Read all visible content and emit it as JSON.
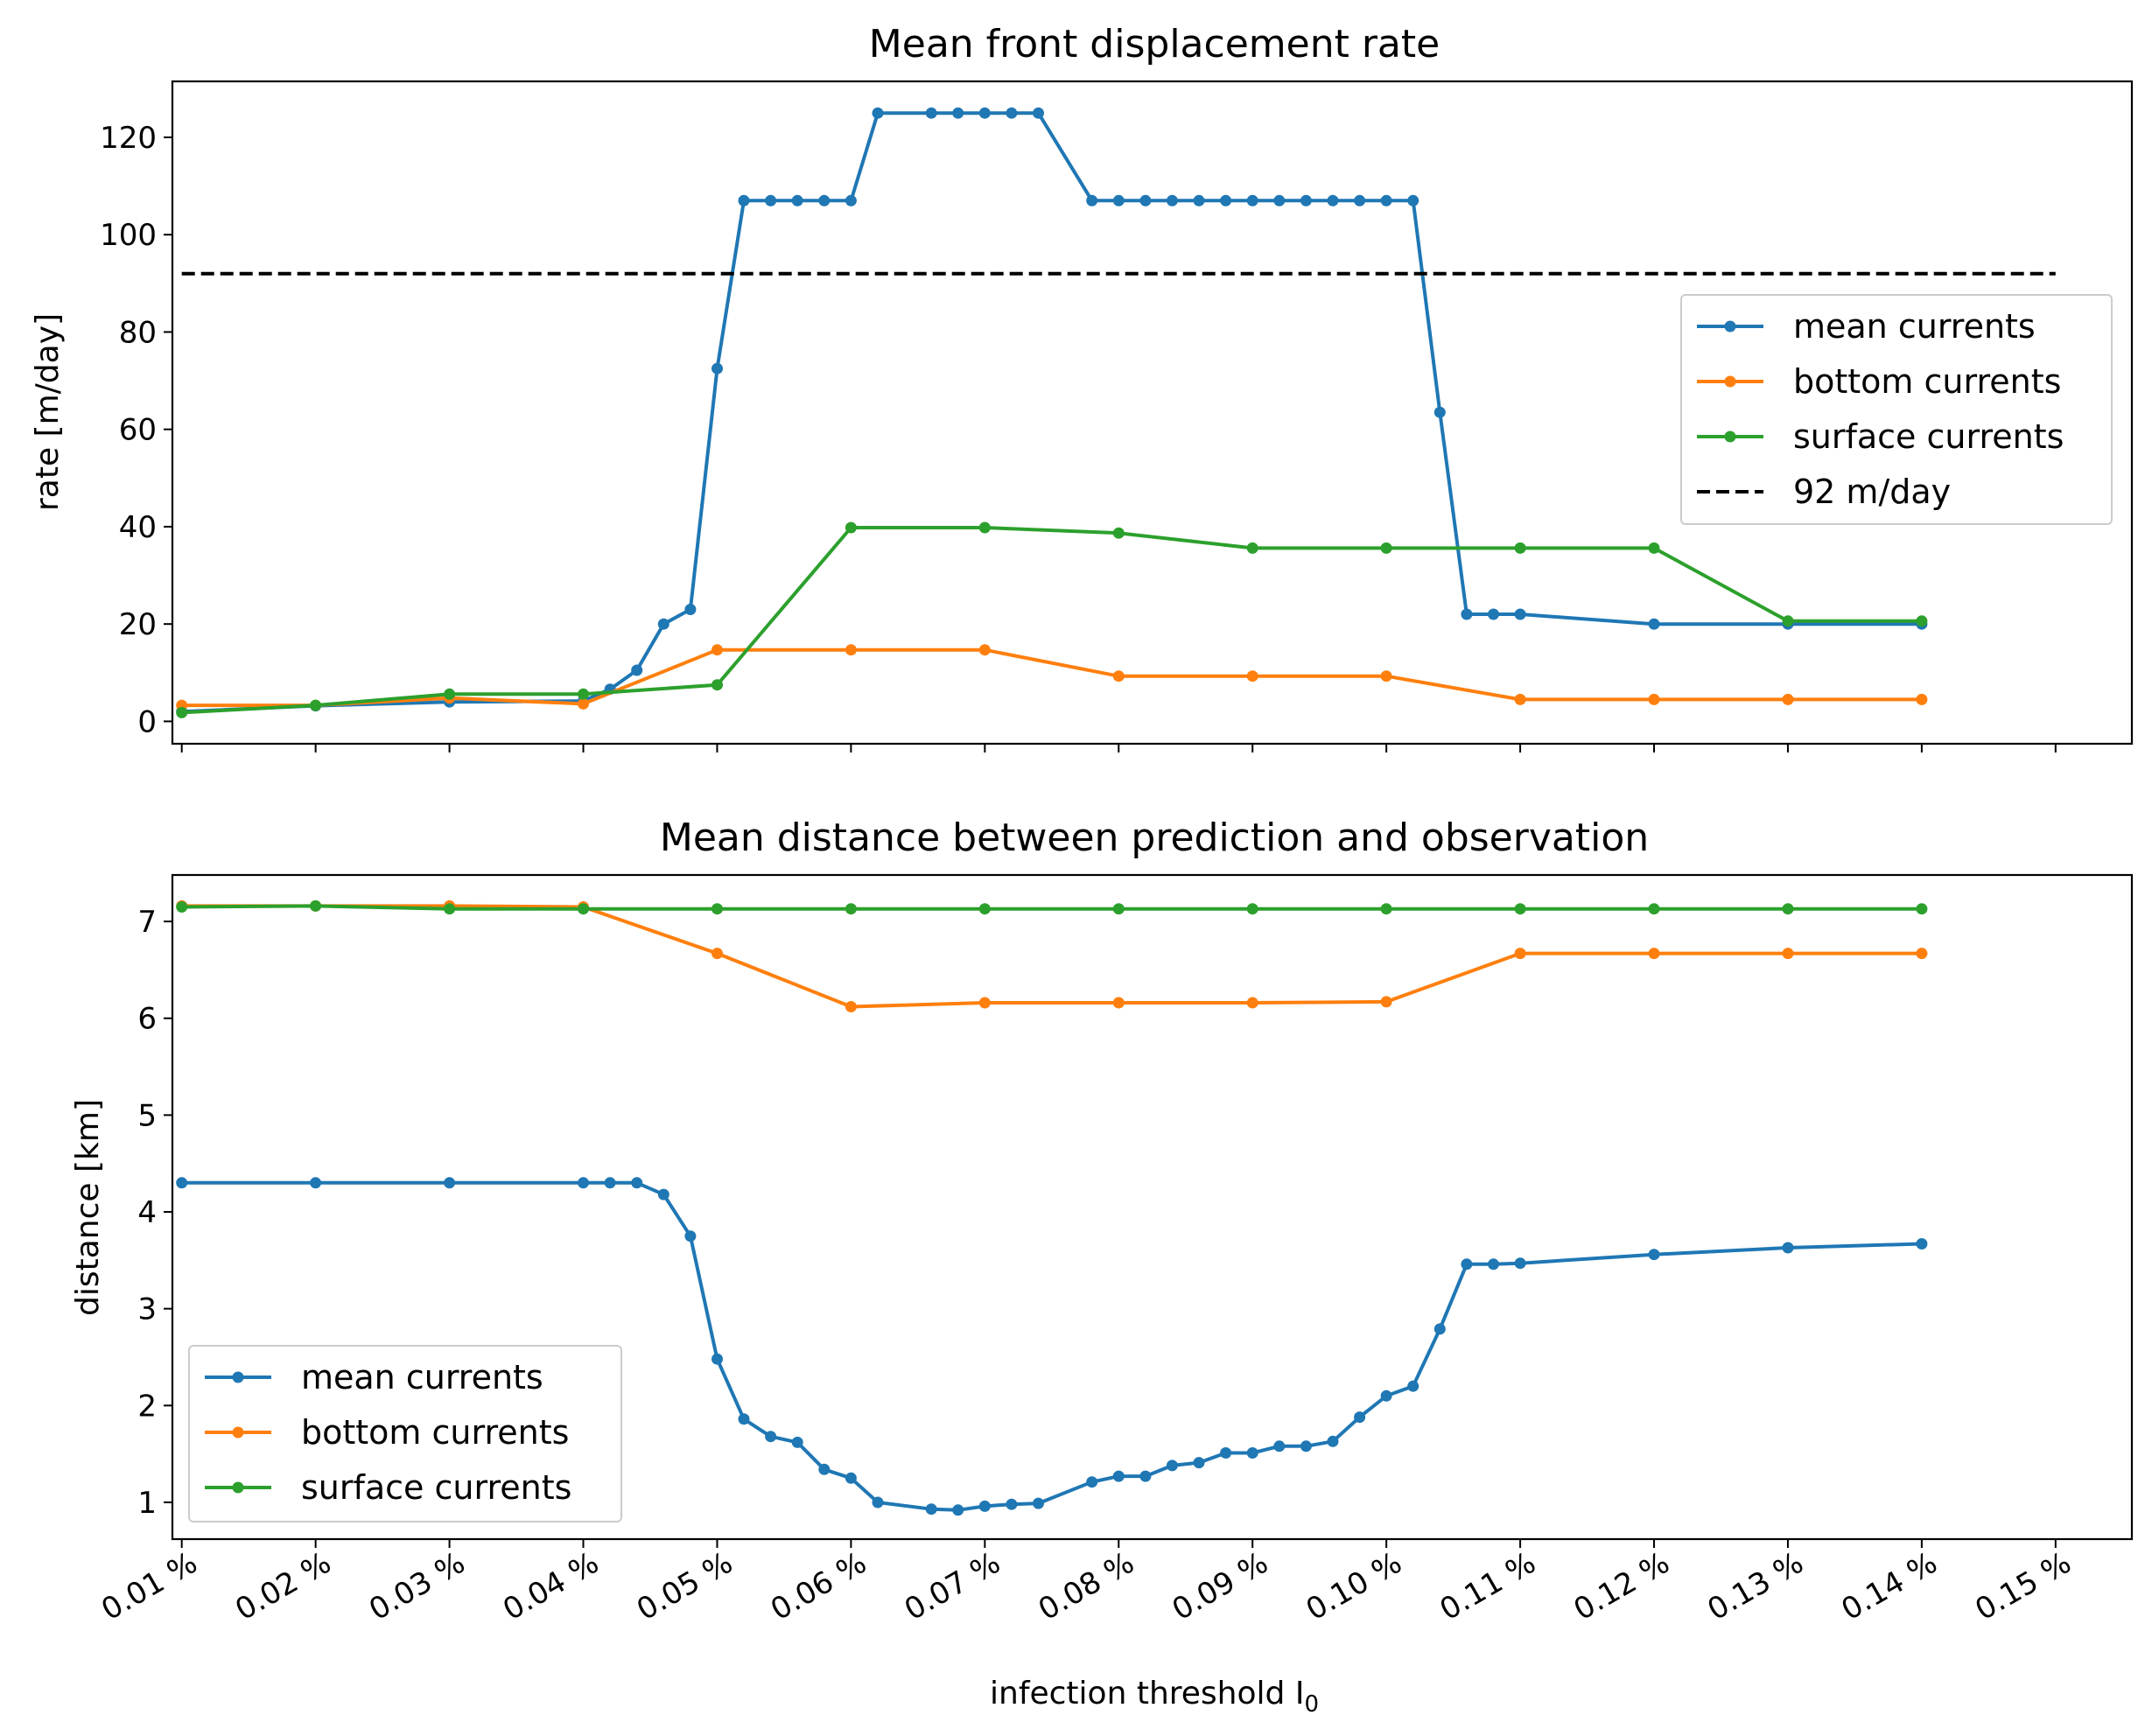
{
  "chart_data": [
    {
      "type": "line",
      "title": "Mean front displacement rate",
      "xlabel": "",
      "ylabel": "rate [m/day]",
      "xlim": [
        0.0093,
        0.1557
      ],
      "ylim": [
        -4.6,
        131.5
      ],
      "xticks": [
        0.01,
        0.02,
        0.03,
        0.04,
        0.05,
        0.06,
        0.07,
        0.08,
        0.09,
        0.1,
        0.11,
        0.12,
        0.13,
        0.14,
        0.15
      ],
      "yticks": [
        0,
        20,
        40,
        60,
        80,
        100,
        120
      ],
      "ytick_labels": [
        "0",
        "20",
        "40",
        "60",
        "80",
        "100",
        "120"
      ],
      "legend_position": "center-right",
      "series": [
        {
          "name": "mean currents",
          "color": "#1f77b4",
          "marker": true,
          "x": [
            0.01,
            0.02,
            0.03,
            0.04,
            0.042,
            0.044,
            0.046,
            0.048,
            0.05,
            0.052,
            0.054,
            0.056,
            0.058,
            0.06,
            0.062,
            0.066,
            0.068,
            0.07,
            0.072,
            0.074,
            0.078,
            0.08,
            0.082,
            0.084,
            0.086,
            0.088,
            0.09,
            0.092,
            0.094,
            0.096,
            0.098,
            0.1,
            0.102,
            0.104,
            0.106,
            0.108,
            0.11,
            0.12,
            0.13,
            0.14
          ],
          "y": [
            2,
            3.2,
            4,
            4.2,
            6.6,
            10.5,
            20,
            23,
            72.5,
            107,
            107,
            107,
            107,
            107,
            125,
            125,
            125,
            125,
            125,
            125,
            107,
            107,
            107,
            107,
            107,
            107,
            107,
            107,
            107,
            107,
            107,
            107,
            107,
            63.5,
            22,
            22,
            22,
            20,
            20,
            20
          ]
        },
        {
          "name": "bottom currents",
          "color": "#ff7f0e",
          "marker": true,
          "x": [
            0.01,
            0.02,
            0.03,
            0.04,
            0.05,
            0.06,
            0.07,
            0.08,
            0.09,
            0.1,
            0.11,
            0.12,
            0.13,
            0.14
          ],
          "y": [
            3.3,
            3.3,
            4.8,
            3.6,
            14.7,
            14.7,
            14.7,
            9.3,
            9.3,
            9.3,
            4.5,
            4.5,
            4.5,
            4.5
          ]
        },
        {
          "name": "surface currents",
          "color": "#2ca02c",
          "marker": true,
          "x": [
            0.01,
            0.02,
            0.03,
            0.04,
            0.05,
            0.06,
            0.07,
            0.08,
            0.09,
            0.1,
            0.11,
            0.12,
            0.13,
            0.14
          ],
          "y": [
            1.8,
            3.3,
            5.6,
            5.6,
            7.5,
            39.8,
            39.8,
            38.7,
            35.6,
            35.6,
            35.6,
            35.6,
            20.6,
            20.6
          ]
        },
        {
          "name": "92 m/day",
          "color": "#000000",
          "marker": false,
          "dashed": true,
          "x": [
            0.01,
            0.15
          ],
          "y": [
            92,
            92
          ]
        }
      ]
    },
    {
      "type": "line",
      "title": "Mean distance between prediction and observation",
      "xlabel": "infection threshold I",
      "xlabel_sub": "0",
      "ylabel": "distance [km]",
      "xlim": [
        0.0093,
        0.1557
      ],
      "ylim": [
        0.62,
        7.48
      ],
      "xticks": [
        0.01,
        0.02,
        0.03,
        0.04,
        0.05,
        0.06,
        0.07,
        0.08,
        0.09,
        0.1,
        0.11,
        0.12,
        0.13,
        0.14,
        0.15
      ],
      "xtick_labels": [
        "0.01 %",
        "0.02 %",
        "0.03 %",
        "0.04 %",
        "0.05 %",
        "0.06 %",
        "0.07 %",
        "0.08 %",
        "0.09 %",
        "0.10 %",
        "0.11 %",
        "0.12 %",
        "0.13 %",
        "0.14 %",
        "0.15 %"
      ],
      "yticks": [
        1,
        2,
        3,
        4,
        5,
        6,
        7
      ],
      "ytick_labels": [
        "1",
        "2",
        "3",
        "4",
        "5",
        "6",
        "7"
      ],
      "legend_position": "lower-left",
      "series": [
        {
          "name": "mean currents",
          "color": "#1f77b4",
          "marker": true,
          "x": [
            0.01,
            0.02,
            0.03,
            0.04,
            0.042,
            0.044,
            0.046,
            0.048,
            0.05,
            0.052,
            0.054,
            0.056,
            0.058,
            0.06,
            0.062,
            0.066,
            0.068,
            0.07,
            0.072,
            0.074,
            0.078,
            0.08,
            0.082,
            0.084,
            0.086,
            0.088,
            0.09,
            0.092,
            0.094,
            0.096,
            0.098,
            0.1,
            0.102,
            0.104,
            0.106,
            0.108,
            0.11,
            0.12,
            0.13,
            0.14
          ],
          "y": [
            4.3,
            4.3,
            4.3,
            4.3,
            4.3,
            4.3,
            4.18,
            3.75,
            2.48,
            1.86,
            1.68,
            1.62,
            1.34,
            1.25,
            1.0,
            0.93,
            0.92,
            0.96,
            0.98,
            0.99,
            1.21,
            1.27,
            1.27,
            1.38,
            1.41,
            1.51,
            1.51,
            1.58,
            1.58,
            1.63,
            1.88,
            2.1,
            2.2,
            2.79,
            3.46,
            3.46,
            3.47,
            3.56,
            3.63,
            3.67
          ]
        },
        {
          "name": "bottom currents",
          "color": "#ff7f0e",
          "marker": true,
          "x": [
            0.01,
            0.02,
            0.03,
            0.04,
            0.05,
            0.06,
            0.07,
            0.08,
            0.09,
            0.1,
            0.11,
            0.12,
            0.13,
            0.14
          ],
          "y": [
            7.16,
            7.16,
            7.16,
            7.15,
            6.67,
            6.12,
            6.16,
            6.16,
            6.16,
            6.17,
            6.67,
            6.67,
            6.67,
            6.67
          ]
        },
        {
          "name": "surface currents",
          "color": "#2ca02c",
          "marker": true,
          "x": [
            0.01,
            0.02,
            0.03,
            0.04,
            0.05,
            0.06,
            0.07,
            0.08,
            0.09,
            0.1,
            0.11,
            0.12,
            0.13,
            0.14
          ],
          "y": [
            7.15,
            7.16,
            7.13,
            7.13,
            7.13,
            7.13,
            7.13,
            7.13,
            7.13,
            7.13,
            7.13,
            7.13,
            7.13,
            7.13
          ]
        }
      ]
    }
  ]
}
